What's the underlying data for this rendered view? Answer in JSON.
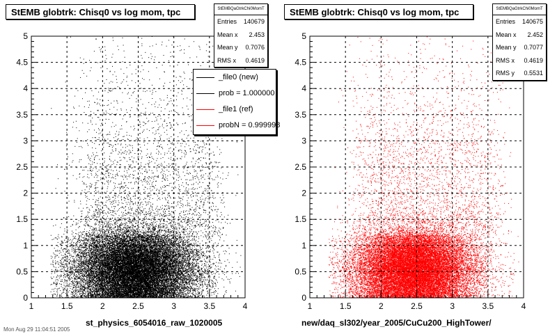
{
  "chart_data": [
    {
      "type": "scatter",
      "title": "StEMB globtrk: Chisq0 vs log mom, tpc",
      "xlabel": "st_physics_6054016_raw_1020005",
      "ylabel": "",
      "xlim": [
        1,
        4
      ],
      "ylim": [
        0,
        5
      ],
      "x_ticks": [
        "1",
        "1.5",
        "2",
        "2.5",
        "3",
        "3.5",
        "4"
      ],
      "y_ticks": [
        "0",
        "0.5",
        "1",
        "1.5",
        "2",
        "2.5",
        "3",
        "3.5",
        "4",
        "4.5",
        "5"
      ],
      "grid": true,
      "marker_color": "#000000",
      "stats": {
        "name": "StEMBQaGtrkChi0MomT",
        "rows": [
          {
            "label": "Entries",
            "value": "140679"
          },
          {
            "label": "Mean x",
            "value": "2.453"
          },
          {
            "label": "Mean y",
            "value": "0.7076"
          },
          {
            "label": "RMS x",
            "value": "0.4619"
          }
        ],
        "summary": {
          "entries": 140679,
          "mean_x": 2.453,
          "mean_y": 0.7076,
          "rms_x": 0.4619
        }
      },
      "legend": {
        "placement": "top-right",
        "entries": [
          {
            "label": "_file0 (new)",
            "color": "#000000"
          },
          {
            "label": "prob = 1.000000",
            "color": "#000000"
          },
          {
            "label": "_file1 (ref)",
            "color": "#ff0000"
          },
          {
            "label": "probN = 0.999998",
            "color": "#ff0000"
          }
        ]
      }
    },
    {
      "type": "scatter",
      "title": "StEMB globtrk: Chisq0 vs log mom, tpc",
      "xlabel": "new/daq_sl302/year_2005/CuCu200_HighTower/",
      "ylabel": "",
      "xlim": [
        1,
        4
      ],
      "ylim": [
        0,
        5
      ],
      "x_ticks": [
        "1",
        "1.5",
        "2",
        "2.5",
        "3",
        "3.5",
        "4"
      ],
      "y_ticks": [
        "0",
        "0.5",
        "1",
        "1.5",
        "2",
        "2.5",
        "3",
        "3.5",
        "4",
        "4.5",
        "5"
      ],
      "grid": true,
      "marker_color": "#ff0000",
      "stats": {
        "name": "StEMBQaGtrkChi0MomT",
        "rows": [
          {
            "label": "Entries",
            "value": "140675"
          },
          {
            "label": "Mean x",
            "value": "2.452"
          },
          {
            "label": "Mean y",
            "value": "0.7077"
          },
          {
            "label": "RMS x",
            "value": "0.4619"
          },
          {
            "label": "RMS y",
            "value": "0.5531"
          }
        ],
        "summary": {
          "entries": 140675,
          "mean_x": 2.452,
          "mean_y": 0.7077,
          "rms_x": 0.4619,
          "rms_y": 0.5531
        }
      }
    }
  ],
  "footer": {
    "timestamp": "Mon Aug 29 11:04:51 2005"
  }
}
